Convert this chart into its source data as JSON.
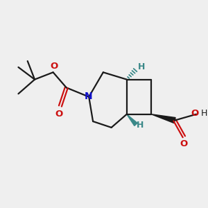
{
  "background_color": "#efefef",
  "bond_color": "#1a1a1a",
  "N_color": "#1010cc",
  "O_color": "#cc1010",
  "stereo_H_color": "#3a8888",
  "fig_w": 3.0,
  "fig_h": 3.0,
  "dpi": 100,
  "xlim": [
    0,
    10
  ],
  "ylim": [
    0,
    10
  ],
  "lw": 1.6,
  "lw_wedge_cooh": 2.0,
  "lw_stereo": 1.4
}
